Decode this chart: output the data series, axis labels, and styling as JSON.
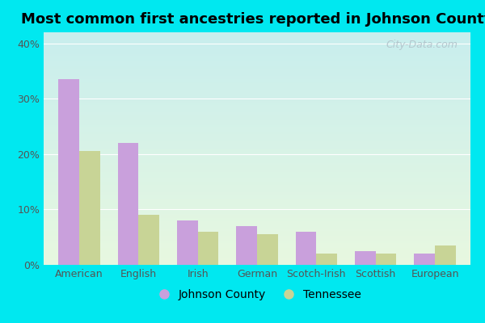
{
  "title": "Most common first ancestries reported in Johnson County",
  "categories": [
    "American",
    "English",
    "Irish",
    "German",
    "Scotch-Irish",
    "Scottish",
    "European"
  ],
  "johnson_county": [
    33.5,
    22.0,
    8.0,
    7.0,
    6.0,
    2.5,
    2.0
  ],
  "tennessee": [
    20.5,
    9.0,
    6.0,
    5.5,
    2.0,
    2.0,
    3.5
  ],
  "johnson_color": "#c9a0dc",
  "tennessee_color": "#c8d496",
  "bg_top_left": "#c8eeee",
  "bg_bottom_right": "#e8f8e0",
  "outer_bg": "#00e8f0",
  "title_fontsize": 13,
  "tick_fontsize": 9,
  "legend_fontsize": 10,
  "ylim": [
    0,
    42
  ],
  "yticks": [
    0,
    10,
    20,
    30,
    40
  ],
  "bar_width": 0.35,
  "watermark": "City-Data.com"
}
